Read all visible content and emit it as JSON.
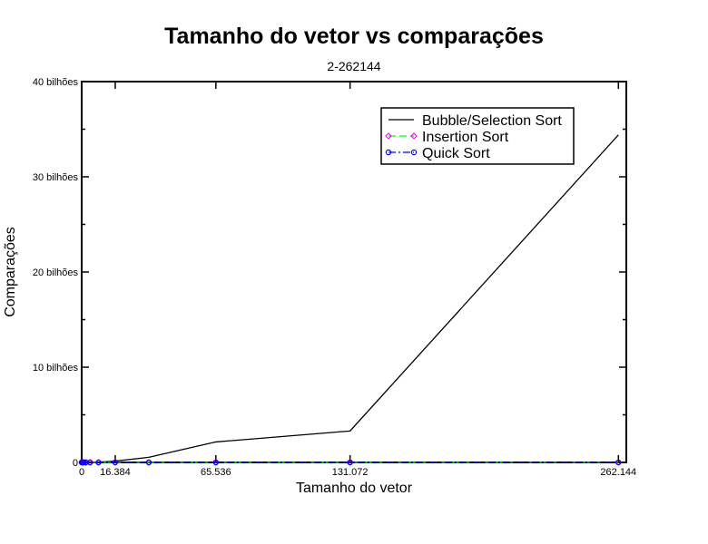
{
  "chart_data": {
    "type": "line",
    "title": "Tamanho do vetor vs comparações",
    "subtitle": "2-262144",
    "xlabel": "Tamanho do vetor",
    "ylabel": "Comparações",
    "xlim": [
      0,
      266000
    ],
    "ylim": [
      0,
      40000000000
    ],
    "xticks": [
      {
        "value": 0,
        "label": "0"
      },
      {
        "value": 16384,
        "label": "16.384"
      },
      {
        "value": 65536,
        "label": "65.536"
      },
      {
        "value": 131072,
        "label": "131.072"
      },
      {
        "value": 262144,
        "label": "262.144"
      }
    ],
    "yticks": [
      {
        "value": 0,
        "label": "0"
      },
      {
        "value": 10000000000,
        "label": "10 bilhões"
      },
      {
        "value": 20000000000,
        "label": "20 bilhões"
      },
      {
        "value": 30000000000,
        "label": "30 bilhões"
      },
      {
        "value": 40000000000,
        "label": "40 bilhões"
      }
    ],
    "legend_position": "top-right",
    "series": [
      {
        "name": "Bubble/Selection Sort",
        "color": "#000000",
        "style": "solid",
        "marker": "none",
        "x": [
          2,
          512,
          1024,
          2048,
          4096,
          8192,
          16384,
          32768,
          65536,
          131072,
          262144
        ],
        "y": [
          1,
          130000,
          520000,
          2100000,
          8400000,
          33500000,
          134000000,
          537000000,
          2150000000,
          3300000000,
          34400000000
        ]
      },
      {
        "name": "Insertion Sort",
        "color": "#ff00ff",
        "line_color": "#00ff00",
        "style": "dashed",
        "marker": "diamond",
        "x": [
          2,
          512,
          1024,
          2048,
          4096,
          8192,
          16384,
          32768,
          65536,
          131072,
          262144
        ],
        "y": [
          1,
          5000,
          11000,
          23000,
          50000,
          107000,
          230000,
          490000,
          1040000,
          2200000,
          4600000
        ]
      },
      {
        "name": "Quick Sort",
        "color": "#0000ff",
        "line_color": "#0000ff",
        "style": "dashdot",
        "marker": "circle",
        "x": [
          2,
          512,
          1024,
          2048,
          4096,
          8192,
          16384,
          32768,
          65536,
          131072,
          262144
        ],
        "y": [
          1,
          5000,
          11000,
          23000,
          50000,
          107000,
          230000,
          490000,
          1040000,
          2200000,
          4600000
        ]
      }
    ]
  }
}
